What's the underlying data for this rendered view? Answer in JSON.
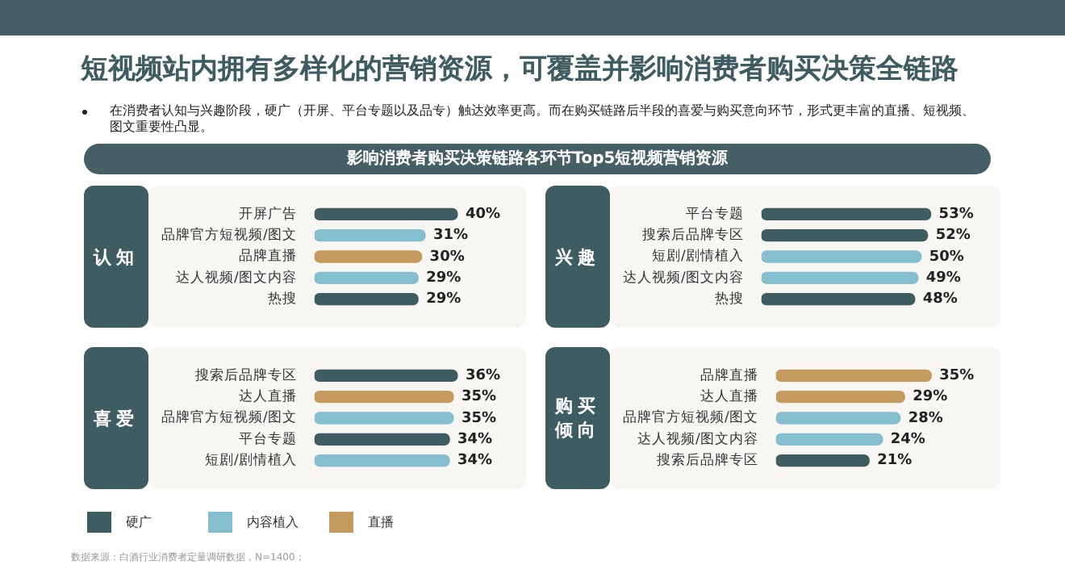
{
  "chart_data": [
    {
      "type": "bar",
      "orientation": "horizontal",
      "stacked": true,
      "tick_labels": "y",
      "title": "短视频站内拥有多样化的营销资源，可覆盖并影响消费者购买决策全链路",
      "subtitle": "在消费者认知与兴趣阶段，硬广（开屏、平台专题以及品专）触达效率更高。而在购买链路后半段的喜爱与购买意向环节，形式更丰富的直播、短视频、图文重要性凸显。",
      "annotations": [
        "影响消费者购买决策链路各环节Top5短视频营销资源"
      ],
      "ylabel": "认知",
      "categories": [
        "开屏广告",
        "品牌官方短视频/图文",
        "品牌直播",
        "达人视频/图文内容",
        "热搜"
      ],
      "series": [
        {
          "color": "#3f5c61",
          "values": [
            40,
            null,
            null,
            null,
            29
          ],
          "value_labels": [
            "40%",
            null,
            null,
            null,
            "29%"
          ]
        },
        {
          "color": "#85bfcf",
          "values": [
            null,
            31,
            null,
            29,
            null
          ],
          "value_labels": [
            null,
            "31%",
            null,
            "29%",
            null
          ]
        },
        {
          "color": "#c49a5e",
          "values": [
            null,
            null,
            30,
            null,
            null
          ],
          "value_labels": [
            null,
            null,
            "30%",
            null,
            null
          ]
        }
      ]
    },
    {
      "type": "bar",
      "orientation": "horizontal",
      "stacked": true,
      "tick_labels": "y",
      "ylabel": "兴趣",
      "categories": [
        "平台专题",
        "搜索后品牌专区",
        "短剧/剧情植入",
        "达人视频/图文内容",
        "热搜"
      ],
      "series": [
        {
          "color": "#3f5c61",
          "values": [
            53,
            52,
            null,
            null,
            48
          ],
          "value_labels": [
            "53%",
            "52%",
            null,
            null,
            "48%"
          ]
        },
        {
          "color": "#85bfcf",
          "values": [
            null,
            null,
            50,
            49,
            null
          ],
          "value_labels": [
            null,
            null,
            "50%",
            "49%",
            null
          ]
        }
      ]
    },
    {
      "type": "bar",
      "orientation": "horizontal",
      "stacked": true,
      "tick_labels": "y",
      "ylabel": "喜爱",
      "legend": "bottom",
      "annotations": [
        "数据来源：白酒行业消费者定量调研数据，N=1400；"
      ],
      "categories": [
        "搜索后品牌专区",
        "达人直播",
        "品牌官方短视频/图文",
        "平台专题",
        "短剧/剧情植入"
      ],
      "series": [
        {
          "name": "硬广",
          "color": "#3f5c61",
          "values": [
            36,
            null,
            null,
            34,
            null
          ],
          "value_labels": [
            "36%",
            null,
            null,
            "34%",
            null
          ]
        },
        {
          "name": "内容植入",
          "color": "#85bfcf",
          "values": [
            null,
            null,
            35,
            null,
            34
          ],
          "value_labels": [
            null,
            null,
            "35%",
            null,
            "34%"
          ]
        },
        {
          "name": "直播",
          "color": "#c49a5e",
          "values": [
            null,
            35,
            null,
            null,
            null
          ],
          "value_labels": [
            null,
            "35%",
            null,
            null,
            null
          ]
        }
      ]
    },
    {
      "type": "bar",
      "orientation": "horizontal",
      "stacked": true,
      "tick_labels": "y",
      "ylabel": "购买倾向",
      "categories": [
        "品牌直播",
        "达人直播",
        "品牌官方短视频/图文",
        "达人视频/图文内容",
        "搜索后品牌专区"
      ],
      "series": [
        {
          "color": "#3f5c61",
          "values": [
            null,
            null,
            null,
            null,
            21
          ],
          "value_labels": [
            null,
            null,
            null,
            null,
            "21%"
          ]
        },
        {
          "color": "#85bfcf",
          "values": [
            null,
            null,
            28,
            24,
            null
          ],
          "value_labels": [
            null,
            null,
            "28%",
            "24%",
            null
          ]
        },
        {
          "color": "#c49a5e",
          "values": [
            35,
            29,
            null,
            null,
            null
          ],
          "value_labels": [
            "35%",
            "29%",
            null,
            null,
            null
          ]
        }
      ]
    }
  ]
}
